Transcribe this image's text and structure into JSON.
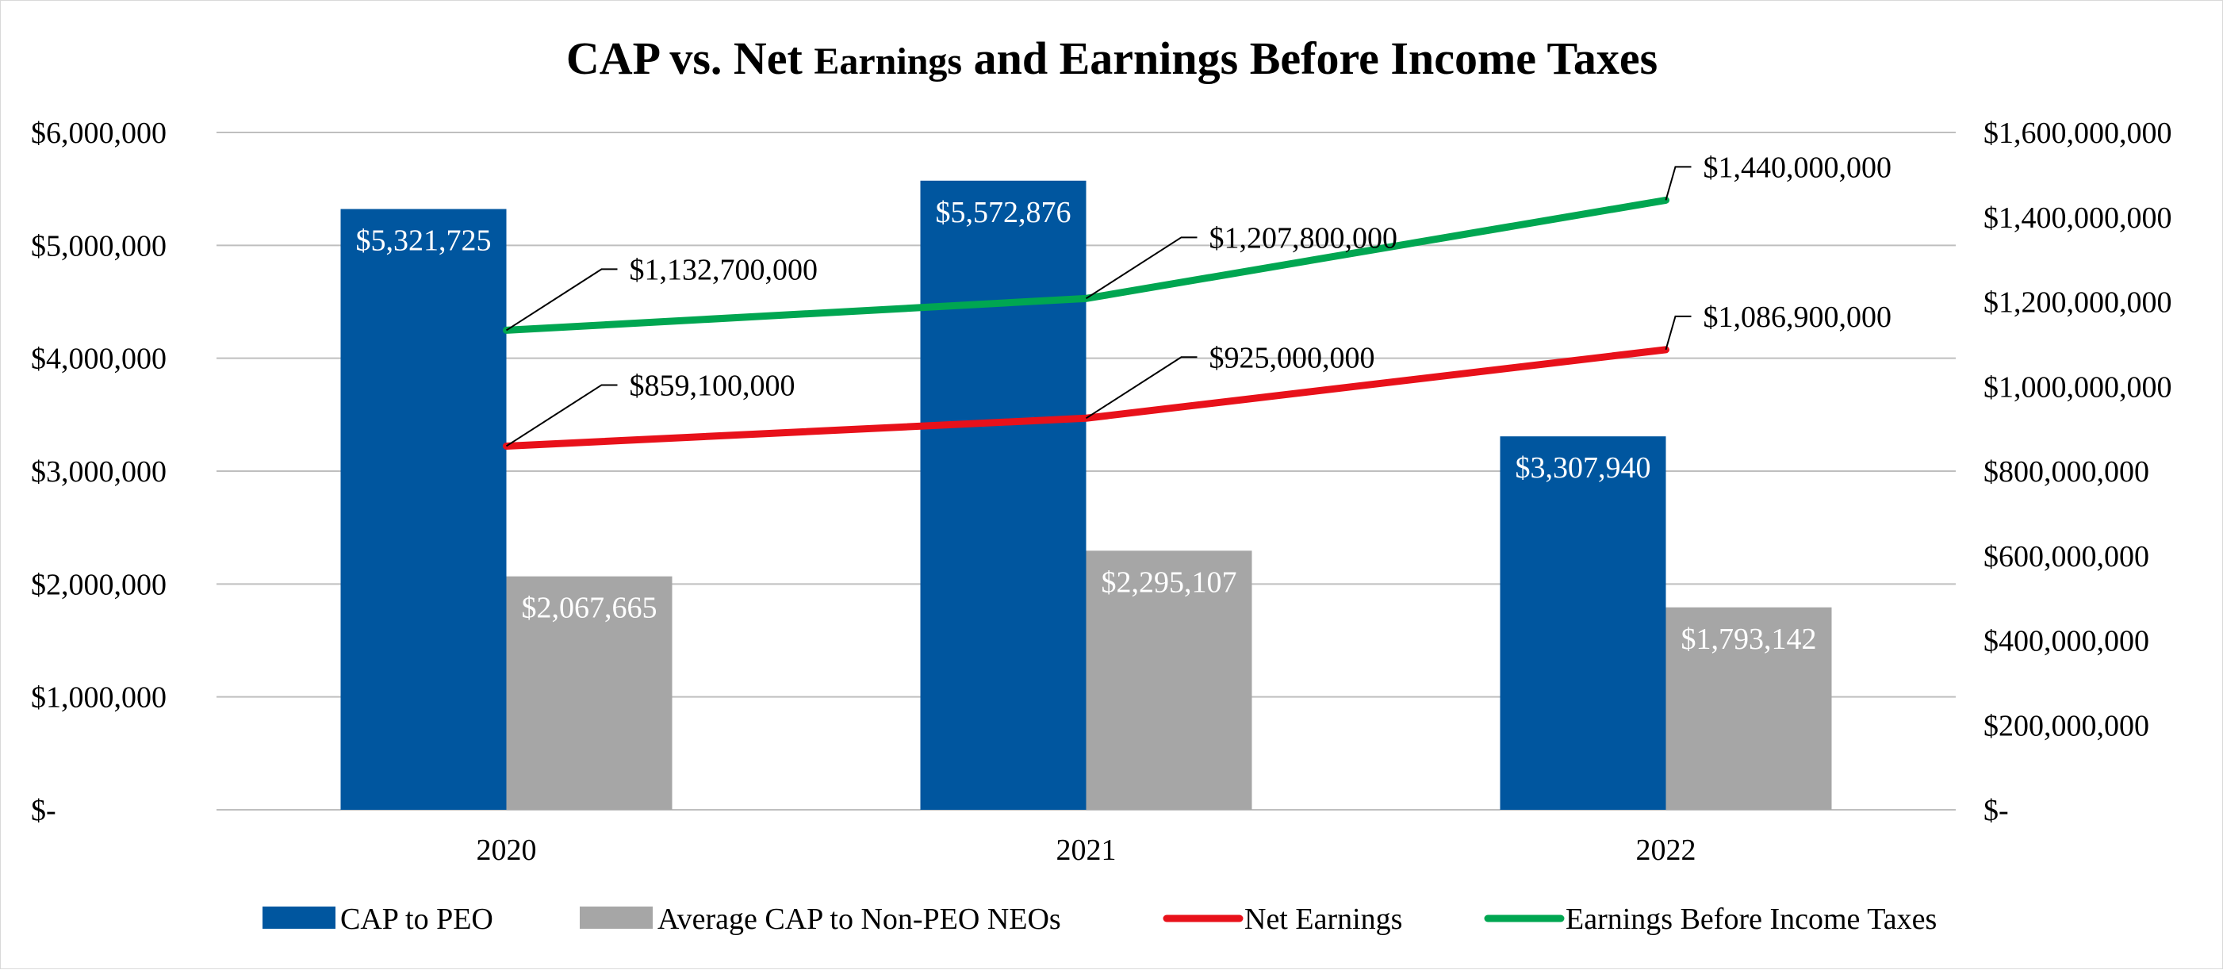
{
  "chart_data": {
    "type": "bar",
    "title": "CAP vs. Net Earnings and Earnings Before Income Taxes",
    "title_parts": {
      "part1": "CAP vs. Net ",
      "part2": "Earnings",
      "part3": " and Earnings Before Income Taxes"
    },
    "categories": [
      "2020",
      "2021",
      "2022"
    ],
    "left_axis": {
      "ylim": [
        0,
        6000000
      ],
      "ticks": [
        0,
        1000000,
        2000000,
        3000000,
        4000000,
        5000000,
        6000000
      ],
      "tick_labels": [
        "$-",
        "$1,000,000",
        "$2,000,000",
        "$3,000,000",
        "$4,000,000",
        "$5,000,000",
        "$6,000,000"
      ]
    },
    "right_axis": {
      "ylim": [
        0,
        1600000000
      ],
      "ticks": [
        0,
        200000000,
        400000000,
        600000000,
        800000000,
        1000000000,
        1200000000,
        1400000000,
        1600000000
      ],
      "tick_labels": [
        "$-",
        "$200,000,000",
        "$400,000,000",
        "$600,000,000",
        "$800,000,000",
        "$1,000,000,000",
        "$1,200,000,000",
        "$1,400,000,000",
        "$1,600,000,000"
      ]
    },
    "grid": true,
    "legend_position": "bottom",
    "bar_series": [
      {
        "name": "CAP to PEO",
        "axis": "left",
        "color": "#00569f",
        "values": [
          5321725,
          5572876,
          3307940
        ],
        "labels": [
          "$5,321,725",
          "$5,572,876",
          "$3,307,940"
        ]
      },
      {
        "name": "Average CAP to Non-PEO NEOs",
        "axis": "left",
        "color": "#a6a6a6",
        "values": [
          2067665,
          2295107,
          1793142
        ],
        "labels": [
          "$2,067,665",
          "$2,295,107",
          "$1,793,142"
        ]
      }
    ],
    "line_series": [
      {
        "name": "Net Earnings",
        "axis": "right",
        "color": "#e8111a",
        "values": [
          859100000,
          925000000,
          1086900000
        ],
        "labels": [
          "$859,100,000",
          "$925,000,000",
          "$1,086,900,000"
        ]
      },
      {
        "name": "Earnings Before Income Taxes",
        "axis": "right",
        "color": "#00a651",
        "values": [
          1132700000,
          1207800000,
          1440000000
        ],
        "labels": [
          "$1,132,700,000",
          "$1,207,800,000",
          "$1,440,000,000"
        ]
      }
    ]
  }
}
